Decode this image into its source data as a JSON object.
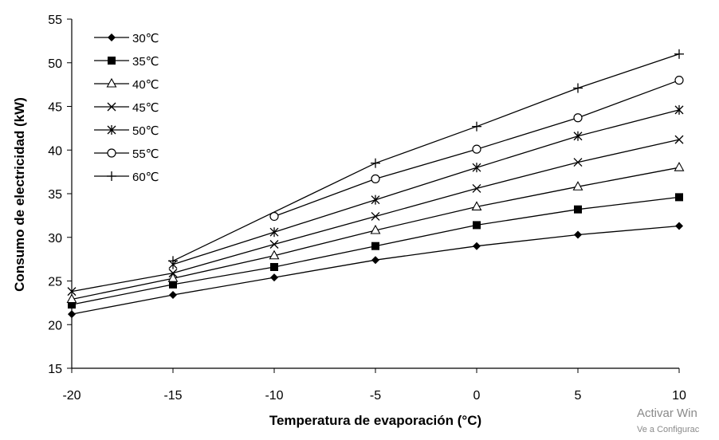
{
  "chart_data": {
    "type": "line",
    "title": "",
    "xlabel": "Temperatura de evaporación (°C)",
    "ylabel": "Consumo de electricidad (kW)",
    "xlim": [
      -20,
      10
    ],
    "ylim": [
      15,
      55
    ],
    "xticks": [
      "-20",
      "-15",
      "-10",
      "-5",
      "0",
      "5",
      "10"
    ],
    "yticks": [
      "15",
      "20",
      "25",
      "30",
      "35",
      "40",
      "45",
      "50",
      "55"
    ],
    "grid": false,
    "legend_position": "top-left",
    "series": [
      {
        "name": "30℃",
        "marker": "diamond",
        "x": [
          -20,
          -15,
          -10,
          -5,
          0,
          5,
          10
        ],
        "y": [
          21.2,
          23.4,
          25.4,
          27.4,
          29.0,
          30.3,
          31.3
        ]
      },
      {
        "name": "35℃",
        "marker": "square",
        "x": [
          -20,
          -15,
          -10,
          -5,
          0,
          5,
          10
        ],
        "y": [
          22.3,
          24.6,
          26.6,
          29.0,
          31.4,
          33.2,
          34.6
        ]
      },
      {
        "name": "40℃",
        "marker": "triangle",
        "x": [
          -20,
          -15,
          -10,
          -5,
          0,
          5,
          10
        ],
        "y": [
          22.9,
          25.3,
          27.9,
          30.8,
          33.5,
          35.8,
          38.0
        ]
      },
      {
        "name": "45℃",
        "marker": "x",
        "x": [
          -20,
          -15,
          -10,
          -5,
          0,
          5,
          10
        ],
        "y": [
          23.8,
          25.9,
          29.2,
          32.4,
          35.6,
          38.6,
          41.2
        ]
      },
      {
        "name": "50℃",
        "marker": "star",
        "x": [
          -15,
          -10,
          -5,
          0,
          5,
          10
        ],
        "y": [
          26.9,
          30.6,
          34.3,
          38.0,
          41.6,
          44.6
        ]
      },
      {
        "name": "55℃",
        "marker": "circle",
        "x": [
          -10,
          -5,
          0,
          5,
          10
        ],
        "y": [
          32.4,
          36.7,
          40.1,
          43.7,
          48.0
        ]
      },
      {
        "name": "60℃",
        "marker": "plus",
        "x": [
          -15,
          -5,
          0,
          5,
          10
        ],
        "y": [
          27.3,
          38.5,
          42.7,
          47.1,
          51.0
        ]
      }
    ]
  },
  "watermark": {
    "line1": "Activar Win",
    "line2": "Ve a Configurac"
  }
}
